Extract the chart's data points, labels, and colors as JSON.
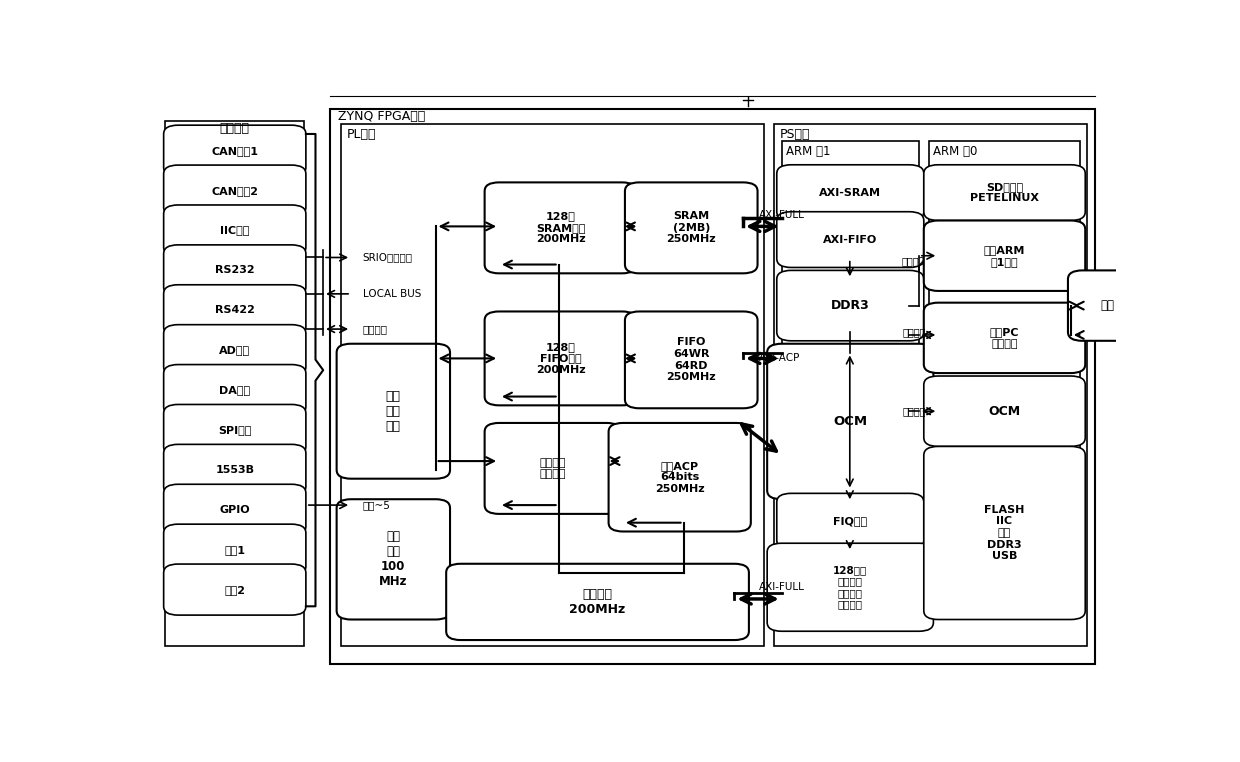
{
  "bg": "#ffffff",
  "devices": [
    "CAN外设1",
    "CAN外设2",
    "IIC外设",
    "RS232",
    "RS422",
    "AD外设",
    "DA外设",
    "SPI设备",
    "1553B",
    "GPIO",
    "定制1",
    "定制2"
  ]
}
